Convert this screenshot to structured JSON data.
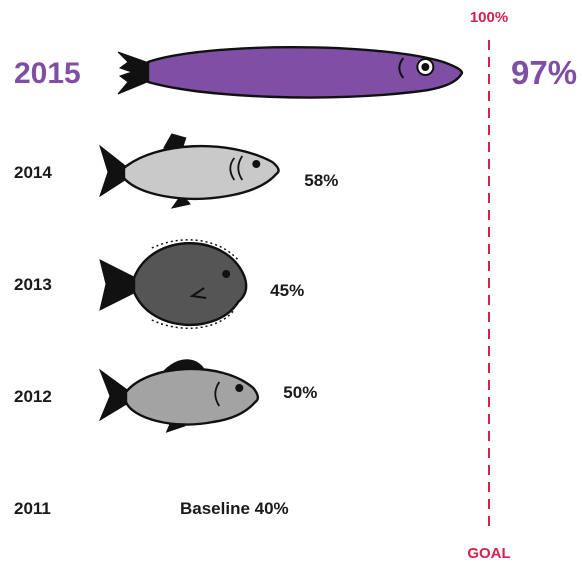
{
  "chart_data": {
    "type": "bar",
    "categories": [
      "2015",
      "2014",
      "2013",
      "2012",
      "2011"
    ],
    "values": [
      97,
      58,
      45,
      50,
      40
    ],
    "value_labels": [
      "97%",
      "58%",
      "45%",
      "50%",
      "Baseline 40%"
    ],
    "highlight_category": "2015",
    "goal": {
      "value": 100,
      "top_label": "100%",
      "bottom_label": "GOAL"
    },
    "colors": {
      "highlight_fish": "#7f4fa6",
      "fish_2014": "#c9c9c9",
      "fish_2013": "#555555",
      "fish_2012": "#a3a3a3",
      "goal_line": "#d6204e",
      "highlight_text": "#7f4fa6",
      "text": "#1a1a1a"
    },
    "fish_icons": [
      "long-fish-icon",
      "herring-fish-icon",
      "flounder-fish-icon",
      "perch-fish-icon",
      ""
    ],
    "xlim": [
      0,
      100
    ]
  }
}
